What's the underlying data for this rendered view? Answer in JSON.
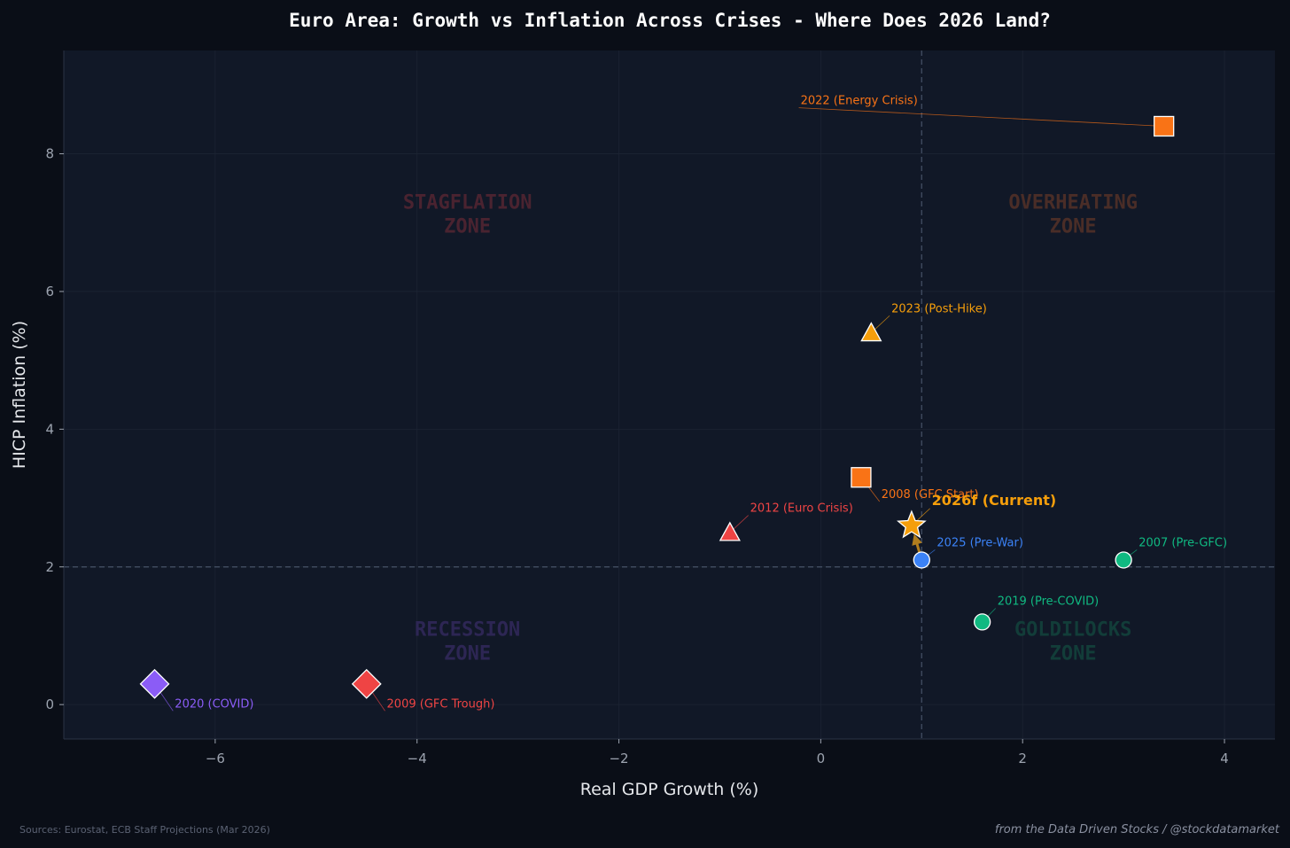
{
  "chart_data": {
    "type": "scatter",
    "title": "Euro Area: Growth vs Inflation Across Crises - Where Does 2026 Land?",
    "xlabel": "Real GDP Growth (%)",
    "ylabel": "HICP Inflation (%)",
    "xlim": [
      -7.5,
      4.5
    ],
    "ylim": [
      -0.5,
      9.5
    ],
    "xticks": [
      -6,
      -4,
      -2,
      0,
      2,
      4
    ],
    "yticks": [
      0,
      2,
      4,
      6,
      8
    ],
    "xtick_labels": [
      "−6",
      "−4",
      "−2",
      "0",
      "2",
      "4"
    ],
    "ytick_labels": [
      "0",
      "2",
      "4",
      "6",
      "8"
    ],
    "reference_lines": {
      "x": 1.0,
      "y": 2.0
    },
    "zones": [
      {
        "name": "stagflation",
        "label": [
          "STAGFLATION",
          "ZONE"
        ],
        "x": -3.5,
        "y": 7.2,
        "color": "#4a2330"
      },
      {
        "name": "overheating",
        "label": [
          "OVERHEATING",
          "ZONE"
        ],
        "x": 2.5,
        "y": 7.2,
        "color": "#4a2d27"
      },
      {
        "name": "recession",
        "label": [
          "RECESSION",
          "ZONE"
        ],
        "x": -3.5,
        "y": 1.0,
        "color": "#2d2654"
      },
      {
        "name": "goldilocks",
        "label": [
          "GOLDILOCKS",
          "ZONE"
        ],
        "x": 2.5,
        "y": 1.0,
        "color": "#123d39"
      }
    ],
    "points": [
      {
        "label": "2022 (Energy Crisis)",
        "x": 3.4,
        "y": 8.4,
        "marker": "square",
        "color": "#f97316",
        "lx": -0.2,
        "ly": 8.72,
        "anchor": "start"
      },
      {
        "label": "2023 (Post-Hike)",
        "x": 0.5,
        "y": 5.4,
        "marker": "triangle",
        "color": "#f59e0b",
        "lx": 0.7,
        "ly": 5.7,
        "anchor": "start"
      },
      {
        "label": "2008 (GFC Start)",
        "x": 0.4,
        "y": 3.3,
        "marker": "square",
        "color": "#f97316",
        "lx": 0.6,
        "ly": 3.0,
        "anchor": "start"
      },
      {
        "label": "2012 (Euro Crisis)",
        "x": -0.9,
        "y": 2.5,
        "marker": "triangle",
        "color": "#ef4444",
        "lx": -0.7,
        "ly": 2.8,
        "anchor": "start"
      },
      {
        "label": "2025 (Pre-War)",
        "x": 1.0,
        "y": 2.1,
        "marker": "circle",
        "color": "#3b82f6",
        "lx": 1.15,
        "ly": 2.3,
        "anchor": "start"
      },
      {
        "label": "2007 (Pre-GFC)",
        "x": 3.0,
        "y": 2.1,
        "marker": "circle",
        "color": "#10b981",
        "lx": 3.15,
        "ly": 2.3,
        "anchor": "start"
      },
      {
        "label": "2019 (Pre-COVID)",
        "x": 1.6,
        "y": 1.2,
        "marker": "circle",
        "color": "#10b981",
        "lx": 1.75,
        "ly": 1.45,
        "anchor": "start"
      },
      {
        "label": "2020 (COVID)",
        "x": -6.6,
        "y": 0.3,
        "marker": "diamond",
        "color": "#8b5cf6",
        "lx": -6.4,
        "ly": -0.04,
        "anchor": "start"
      },
      {
        "label": "2009 (GFC Trough)",
        "x": -4.5,
        "y": 0.3,
        "marker": "diamond",
        "color": "#ef4444",
        "lx": -4.3,
        "ly": -0.04,
        "anchor": "start"
      },
      {
        "label": "2026f (Current)",
        "x": 0.9,
        "y": 2.6,
        "marker": "star",
        "color": "#f59e0b",
        "lx": 1.1,
        "ly": 2.9,
        "anchor": "start",
        "bold": true
      }
    ],
    "arrow": {
      "from": {
        "x": 1.0,
        "y": 2.1
      },
      "to": {
        "x": 0.9,
        "y": 2.6
      },
      "color": "#b07d1e"
    }
  },
  "footer": {
    "sources": "Sources: Eurostat, ECB Staff Projections (Mar 2026)",
    "credit": "from the Data Driven Stocks / @stockdatamarket"
  },
  "colors": {
    "page_bg": "#0a0e17",
    "plot_bg": "#111827",
    "grid": "#1c2433",
    "ref_line": "#3e4a5e",
    "axis_text": "#9ca3af",
    "label_text": "#e5e7eb",
    "title_text": "#ffffff"
  }
}
